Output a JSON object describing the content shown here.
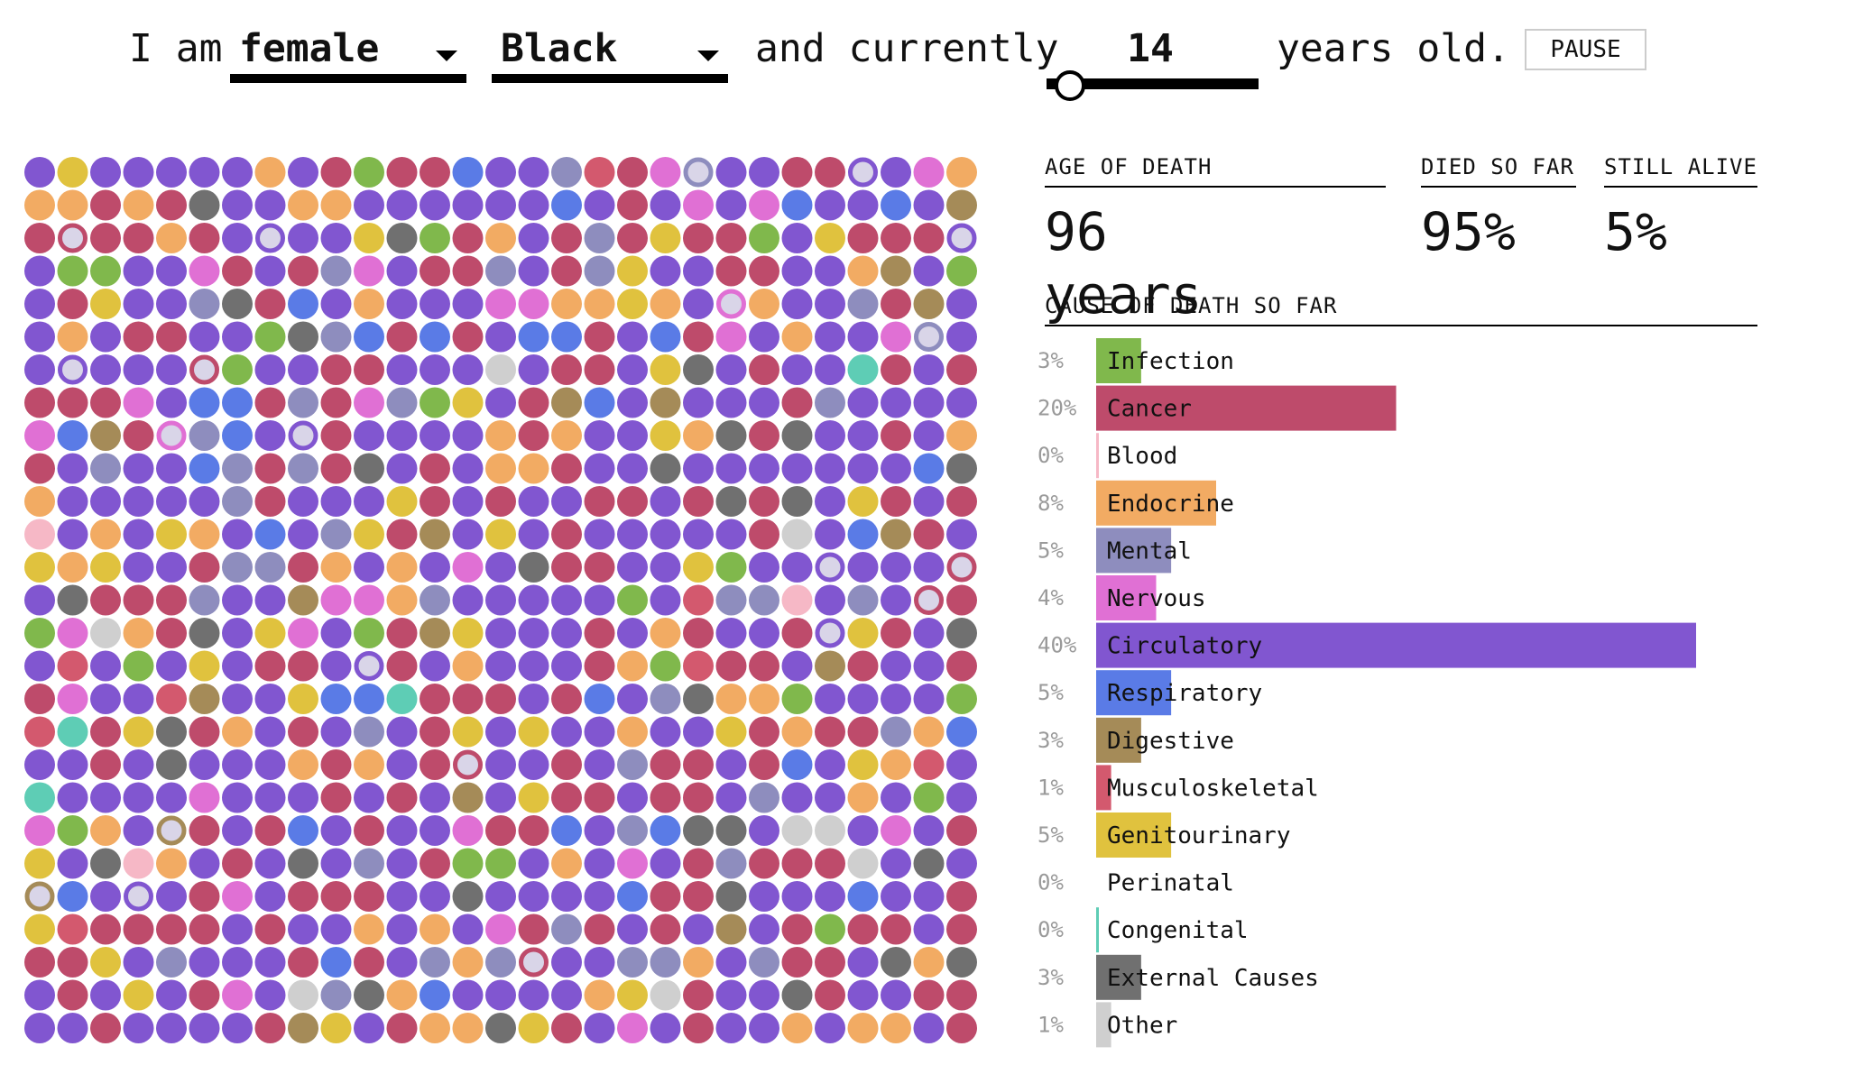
{
  "controls": {
    "prefix": "I am",
    "sex_value": "female",
    "race_value": "Black",
    "middle_text": "and currently",
    "age_value": "14",
    "suffix": "years old.",
    "pause_label": "PAUSE",
    "age_slider_fraction": 0.0
  },
  "stats": {
    "age_of_death_label": "AGE OF DEATH",
    "age_of_death_value": "96 years",
    "died_label": "DIED SO FAR",
    "died_value": "95%",
    "alive_label": "STILL ALIVE",
    "alive_value": "5%",
    "cause_header": "CAUSE OF DEATH SO FAR"
  },
  "colors": {
    "Infection": "#80b84c",
    "Cancer": "#be4b6b",
    "Blood": "#f6b8c6",
    "Endocrine": "#f2ab63",
    "Mental": "#8e8dbe",
    "Nervous": "#e070d4",
    "Circulatory": "#8156d0",
    "Respiratory": "#5a7be6",
    "Digestive": "#a58b58",
    "Musculoskeletal": "#d3596e",
    "Genitourinary": "#e0c23e",
    "Perinatal": "#f5f5f5",
    "Congenital": "#5ecdb5",
    "External Causes": "#707070",
    "Other": "#cfcfcf"
  },
  "chart_data": {
    "type": "bar",
    "title": "CAUSE OF DEATH SO FAR",
    "categories": [
      "Infection",
      "Cancer",
      "Blood",
      "Endocrine",
      "Mental",
      "Nervous",
      "Circulatory",
      "Respiratory",
      "Digestive",
      "Musculoskeletal",
      "Genitourinary",
      "Perinatal",
      "Congenital",
      "External Causes",
      "Other"
    ],
    "values": [
      3,
      20,
      0,
      8,
      5,
      4,
      40,
      5,
      3,
      1,
      5,
      0,
      0,
      3,
      1
    ],
    "value_labels": [
      "3%",
      "20%",
      "0%",
      "8%",
      "5%",
      "4%",
      "40%",
      "5%",
      "3%",
      "1%",
      "5%",
      "0%",
      "0%",
      "3%",
      "1%"
    ],
    "unit": "%",
    "ylim": [
      0,
      40
    ]
  },
  "dot_grid": {
    "columns": 29,
    "rows": 27,
    "cause_order": [
      "Circulatory",
      "Cancer",
      "Endocrine",
      "Respiratory",
      "Mental",
      "Nervous",
      "Infection",
      "Genitourinary",
      "Digestive",
      "External Causes",
      "Other",
      "Musculoskeletal",
      "Congenital",
      "Blood"
    ],
    "cause_weights": [
      40,
      20,
      8,
      5,
      5,
      4,
      3,
      5,
      3,
      3,
      1,
      1,
      0.3,
      0.4
    ]
  }
}
